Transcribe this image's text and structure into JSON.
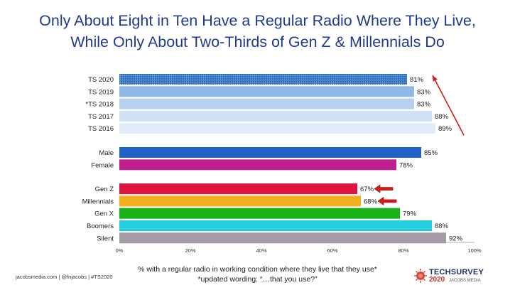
{
  "title_line1": "Only About Eight in Ten Have a Regular Radio Where They Live,",
  "title_line2": "While Only About Two-Thirds of Gen Z & Millennials Do",
  "footnote_line1": "% with a regular radio in working condition where they live that they use*",
  "footnote_line2": "*updated wording: “…that you use?”",
  "footer_text": "jacobsmedia.com  |  @fnjacobs  |  #TS2020",
  "brand": {
    "name": "TECHSURVEY",
    "year": "2020",
    "sub": "JACOBS MEDIA"
  },
  "chart_data": {
    "type": "bar",
    "orientation": "horizontal",
    "xlim": [
      0,
      100
    ],
    "x_ticks": [
      "0%",
      "20%",
      "40%",
      "60%",
      "80%",
      "100%"
    ],
    "value_suffix": "%",
    "groups": [
      {
        "bars": [
          {
            "label": "TS 2020",
            "value": 81,
            "color": "#2f6fbf",
            "pattern": "dotted"
          },
          {
            "label": "TS 2019",
            "value": 83,
            "color": "#8fb8e9"
          },
          {
            "label": "*TS 2018",
            "value": 83,
            "color": "#b7d0f0"
          },
          {
            "label": "TS 2017",
            "value": 88,
            "color": "#d0e1f6"
          },
          {
            "label": "TS 2016",
            "value": 89,
            "color": "#e2ecf9"
          }
        ]
      },
      {
        "bars": [
          {
            "label": "Male",
            "value": 85,
            "color": "#1f62c7"
          },
          {
            "label": "Female",
            "value": 78,
            "color": "#c01f8f"
          }
        ]
      },
      {
        "bars": [
          {
            "label": "Gen Z",
            "value": 67,
            "color": "#e0143c",
            "arrow": true
          },
          {
            "label": "Millennials",
            "value": 68,
            "color": "#f2ae1c",
            "arrow": true
          },
          {
            "label": "Gen X",
            "value": 79,
            "color": "#17b317"
          },
          {
            "label": "Boomers",
            "value": 88,
            "color": "#26cfe0"
          },
          {
            "label": "Silent",
            "value": 92,
            "color": "#a69ca8"
          }
        ]
      }
    ],
    "annotations": [
      "red upward trend arrow beside TS bars",
      "red arrows pointing at Gen Z and Millennials"
    ],
    "grid": false,
    "legend": "none"
  }
}
